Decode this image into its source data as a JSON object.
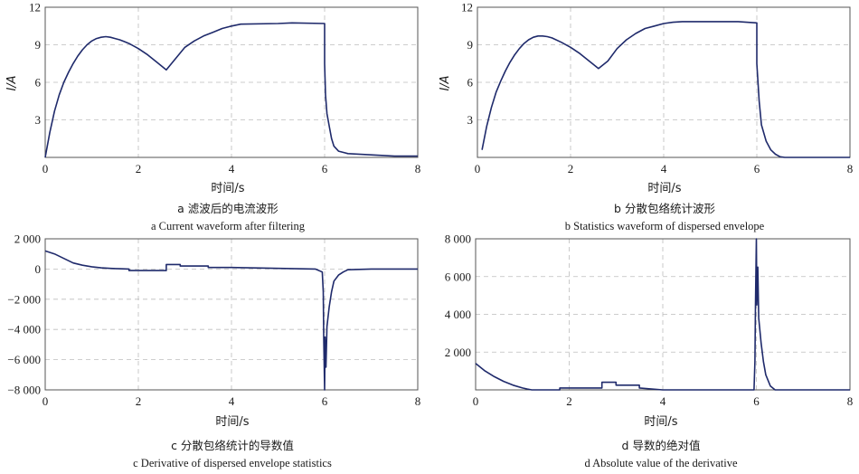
{
  "chart_data": [
    {
      "id": "a",
      "type": "line",
      "xlabel": "时间/s",
      "ylabel": "I/A",
      "xlim": [
        0,
        8
      ],
      "ylim": [
        0,
        12
      ],
      "xticks": [
        0,
        2,
        4,
        6,
        8
      ],
      "yticks": [
        3,
        6,
        9,
        12
      ],
      "xtick_labels": [
        "0",
        "2",
        "4",
        "6",
        "8"
      ],
      "ytick_labels": [
        "3",
        "6",
        "9",
        "12"
      ],
      "grid": true,
      "caption_cn": "a  滤波后的电流波形",
      "caption_en": "a  Current waveform after filtering",
      "series": [
        {
          "x": [
            0.0,
            0.1,
            0.2,
            0.3,
            0.4,
            0.5,
            0.6,
            0.7,
            0.8,
            0.9,
            1.0,
            1.1,
            1.2,
            1.3,
            1.4,
            1.5,
            1.6,
            1.7,
            1.8,
            2.0,
            2.2,
            2.4,
            2.6,
            3.0,
            3.2,
            3.4,
            3.6,
            3.8,
            4.0,
            4.2,
            5.0,
            5.3,
            6.0,
            6.0,
            6.02,
            6.05,
            6.1,
            6.15,
            6.2,
            6.3,
            6.5,
            7.0,
            7.5,
            8.0
          ],
          "y": [
            0.0,
            2.0,
            3.7,
            5.0,
            6.0,
            6.8,
            7.5,
            8.1,
            8.6,
            9.0,
            9.3,
            9.5,
            9.6,
            9.65,
            9.6,
            9.5,
            9.4,
            9.25,
            9.1,
            8.7,
            8.2,
            7.6,
            7.0,
            8.8,
            9.3,
            9.7,
            10.0,
            10.3,
            10.5,
            10.65,
            10.7,
            10.75,
            10.7,
            7.5,
            5.0,
            3.5,
            2.5,
            1.5,
            0.9,
            0.5,
            0.3,
            0.2,
            0.1,
            0.1
          ]
        }
      ]
    },
    {
      "id": "b",
      "type": "line",
      "xlabel": "时间/s",
      "ylabel": "I/A",
      "xlim": [
        0,
        8
      ],
      "ylim": [
        0,
        12
      ],
      "xticks": [
        0,
        2,
        4,
        6,
        8
      ],
      "yticks": [
        3,
        6,
        9,
        12
      ],
      "xtick_labels": [
        "0",
        "2",
        "4",
        "6",
        "8"
      ],
      "ytick_labels": [
        "3",
        "6",
        "9",
        "12"
      ],
      "grid": true,
      "caption_cn": "b  分散包络统计波形",
      "caption_en": "b  Statistics waveform of dispersed envelope",
      "series": [
        {
          "x": [
            0.1,
            0.2,
            0.3,
            0.4,
            0.5,
            0.6,
            0.7,
            0.8,
            0.9,
            1.0,
            1.1,
            1.2,
            1.3,
            1.4,
            1.5,
            1.6,
            1.8,
            2.0,
            2.2,
            2.4,
            2.6,
            2.8,
            3.0,
            3.2,
            3.4,
            3.6,
            3.8,
            4.0,
            4.2,
            4.4,
            5.6,
            6.0,
            6.0,
            6.05,
            6.1,
            6.2,
            6.3,
            6.4,
            6.5,
            6.6,
            7.0,
            8.0
          ],
          "y": [
            0.6,
            2.5,
            4.0,
            5.2,
            6.1,
            6.9,
            7.6,
            8.2,
            8.7,
            9.1,
            9.4,
            9.6,
            9.7,
            9.7,
            9.65,
            9.55,
            9.2,
            8.8,
            8.3,
            7.7,
            7.1,
            7.7,
            8.7,
            9.4,
            9.9,
            10.3,
            10.5,
            10.7,
            10.8,
            10.85,
            10.85,
            10.75,
            7.5,
            4.5,
            2.6,
            1.3,
            0.6,
            0.25,
            0.05,
            0.0,
            0.0,
            0.0
          ]
        }
      ]
    },
    {
      "id": "c",
      "type": "line",
      "xlabel": "时间/s",
      "ylabel": "",
      "xlim": [
        0,
        8
      ],
      "ylim": [
        -8000,
        2000
      ],
      "xticks": [
        0,
        2,
        4,
        6,
        8
      ],
      "yticks": [
        -8000,
        -6000,
        -4000,
        -2000,
        0,
        2000
      ],
      "xtick_labels": [
        "0",
        "2",
        "4",
        "6",
        "8"
      ],
      "ytick_labels": [
        "−8 000",
        "−6 000",
        "−4 000",
        "−2 000",
        "0",
        "2 000"
      ],
      "grid": true,
      "caption_cn": "c  分散包络统计的导数值",
      "caption_en": "c  Derivative of dispersed envelope statistics",
      "series": [
        {
          "x": [
            0.0,
            0.2,
            0.4,
            0.6,
            0.8,
            1.0,
            1.2,
            1.4,
            1.6,
            1.8,
            1.8,
            2.6,
            2.6,
            2.9,
            2.9,
            3.5,
            3.5,
            4.0,
            5.8,
            5.95,
            5.97,
            5.98,
            6.0,
            6.01,
            6.03,
            6.05,
            6.1,
            6.15,
            6.2,
            6.3,
            6.4,
            6.5,
            7.0,
            8.0
          ],
          "y": [
            1200,
            1000,
            700,
            400,
            250,
            150,
            80,
            40,
            20,
            0,
            -100,
            -100,
            300,
            300,
            200,
            200,
            100,
            100,
            0,
            -200,
            -1500,
            -4500,
            -8000,
            -4500,
            -6500,
            -3800,
            -2500,
            -1500,
            -800,
            -400,
            -200,
            -50,
            0,
            0
          ]
        }
      ]
    },
    {
      "id": "d",
      "type": "line",
      "xlabel": "时间/s",
      "ylabel": "",
      "xlim": [
        0,
        8
      ],
      "ylim": [
        0,
        8000
      ],
      "xticks": [
        0,
        2,
        4,
        6,
        8
      ],
      "yticks": [
        2000,
        4000,
        6000,
        8000
      ],
      "xtick_labels": [
        "0",
        "2",
        "4",
        "6",
        "8"
      ],
      "ytick_labels": [
        "2 000",
        "4 000",
        "6 000",
        "8 000"
      ],
      "grid": true,
      "caption_cn": "d  导数的绝对值",
      "caption_en": "d  Absolute value of the derivative",
      "series": [
        {
          "x": [
            0.0,
            0.2,
            0.4,
            0.6,
            0.8,
            1.0,
            1.1,
            1.2,
            1.8,
            1.8,
            2.7,
            2.7,
            3.0,
            3.0,
            3.5,
            3.5,
            4.0,
            5.95,
            5.97,
            5.98,
            6.0,
            6.01,
            6.03,
            6.05,
            6.1,
            6.15,
            6.2,
            6.3,
            6.4,
            7.0,
            8.0
          ],
          "y": [
            1400,
            1000,
            700,
            450,
            250,
            100,
            50,
            0,
            0,
            100,
            100,
            400,
            400,
            250,
            250,
            100,
            0,
            0,
            1500,
            4500,
            8000,
            4500,
            6500,
            3800,
            2500,
            1500,
            800,
            200,
            0,
            0,
            0
          ]
        }
      ]
    }
  ]
}
